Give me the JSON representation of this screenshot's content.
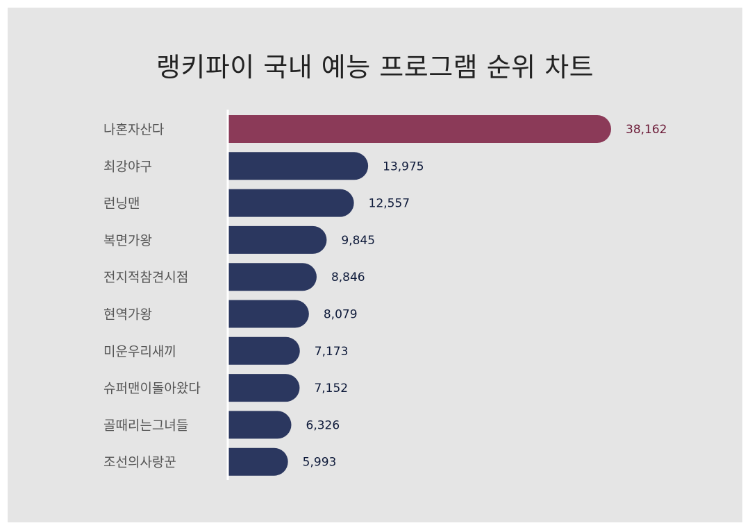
{
  "colors": {
    "highlight": "#8b3a58",
    "bar": "#2b375f",
    "highlight_label": "#6b1a37",
    "label": "#0e1a3a"
  },
  "chart_data": {
    "type": "bar",
    "orientation": "horizontal",
    "title": "랭키파이 국내 예능 프로그램 순위 차트",
    "categories": [
      "나혼자산다",
      "최강야구",
      "런닝맨",
      "복면가왕",
      "전지적참견시점",
      "현역가왕",
      "미운우리새끼",
      "슈퍼맨이돌아왔다",
      "골때리는그녀들",
      "조선의사랑꾼"
    ],
    "values": [
      38162,
      13975,
      12557,
      9845,
      8846,
      8079,
      7173,
      7152,
      6326,
      5993
    ],
    "value_labels": [
      "38,162",
      "13,975",
      "12,557",
      "9,845",
      "8,846",
      "8,079",
      "7,173",
      "7,152",
      "6,326",
      "5,993"
    ],
    "highlight_index": 0,
    "xlabel": "",
    "ylabel": "",
    "grid": false,
    "legend": "none"
  }
}
